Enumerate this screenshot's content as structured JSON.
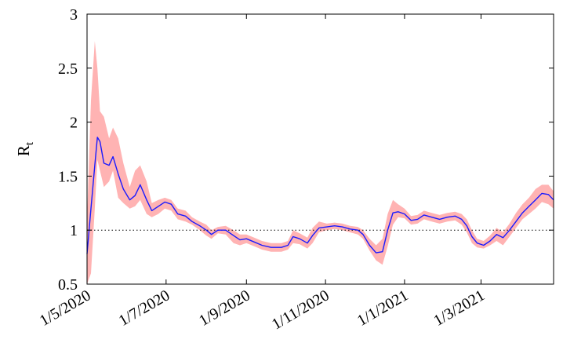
{
  "chart_data": {
    "type": "line",
    "title": "",
    "xlabel": "",
    "ylabel": "R",
    "ylabel_subscript": "t",
    "xlim": [
      "2020-05-01",
      "2021-04-26"
    ],
    "ylim": [
      0.5,
      3
    ],
    "yticks": [
      0.5,
      1,
      1.5,
      2,
      2.5,
      3
    ],
    "ytick_labels": [
      "0.5",
      "1",
      "1.5",
      "2",
      "2.5",
      "3"
    ],
    "xticks": [
      "2020-05-01",
      "2020-07-01",
      "2020-09-01",
      "2020-11-01",
      "2021-01-01",
      "2021-03-01"
    ],
    "xtick_labels": [
      "1/5/2020",
      "1/7/2020",
      "1/9/2020",
      "1/11/2020",
      "1/1/2021",
      "1/3/2021"
    ],
    "reference_line": {
      "y": 1,
      "style": "dotted"
    },
    "grid": false,
    "legend": "none",
    "colors": {
      "line": "#1a1aff",
      "band": "#ffb3b3",
      "axes": "#000000"
    },
    "series": [
      {
        "values": [
          [
            "2020-05-01",
            0.78,
            0.5,
            1.1
          ],
          [
            "2020-05-04",
            1.2,
            0.6,
            2.2
          ],
          [
            "2020-05-07",
            1.6,
            1.2,
            2.75
          ],
          [
            "2020-05-09",
            1.86,
            1.65,
            2.5
          ],
          [
            "2020-05-11",
            1.82,
            1.55,
            2.1
          ],
          [
            "2020-05-14",
            1.62,
            1.4,
            2.05
          ],
          [
            "2020-05-18",
            1.6,
            1.45,
            1.85
          ],
          [
            "2020-05-21",
            1.68,
            1.55,
            1.95
          ],
          [
            "2020-05-25",
            1.52,
            1.3,
            1.85
          ],
          [
            "2020-05-29",
            1.38,
            1.25,
            1.62
          ],
          [
            "2020-06-03",
            1.28,
            1.2,
            1.4
          ],
          [
            "2020-06-07",
            1.32,
            1.22,
            1.55
          ],
          [
            "2020-06-11",
            1.42,
            1.28,
            1.6
          ],
          [
            "2020-06-16",
            1.28,
            1.15,
            1.45
          ],
          [
            "2020-06-20",
            1.18,
            1.12,
            1.25
          ],
          [
            "2020-06-25",
            1.22,
            1.15,
            1.28
          ],
          [
            "2020-06-30",
            1.26,
            1.2,
            1.3
          ],
          [
            "2020-07-05",
            1.24,
            1.18,
            1.28
          ],
          [
            "2020-07-10",
            1.15,
            1.1,
            1.2
          ],
          [
            "2020-07-16",
            1.13,
            1.08,
            1.18
          ],
          [
            "2020-07-21",
            1.08,
            1.05,
            1.12
          ],
          [
            "2020-07-27",
            1.04,
            1.0,
            1.08
          ],
          [
            "2020-08-01",
            1.0,
            0.95,
            1.05
          ],
          [
            "2020-08-05",
            0.96,
            0.92,
            1.0
          ],
          [
            "2020-08-10",
            1.0,
            0.97,
            1.03
          ],
          [
            "2020-08-16",
            1.0,
            0.96,
            1.04
          ],
          [
            "2020-08-22",
            0.95,
            0.88,
            1.0
          ],
          [
            "2020-08-27",
            0.91,
            0.86,
            0.96
          ],
          [
            "2020-09-01",
            0.92,
            0.88,
            0.96
          ],
          [
            "2020-09-07",
            0.89,
            0.85,
            0.93
          ],
          [
            "2020-09-13",
            0.86,
            0.82,
            0.9
          ],
          [
            "2020-09-20",
            0.84,
            0.8,
            0.88
          ],
          [
            "2020-09-28",
            0.84,
            0.8,
            0.88
          ],
          [
            "2020-10-03",
            0.86,
            0.82,
            0.9
          ],
          [
            "2020-10-07",
            0.94,
            0.88,
            1.0
          ],
          [
            "2020-10-12",
            0.92,
            0.87,
            0.97
          ],
          [
            "2020-10-18",
            0.88,
            0.83,
            0.93
          ],
          [
            "2020-10-22",
            0.95,
            0.88,
            1.02
          ],
          [
            "2020-10-27",
            1.02,
            0.98,
            1.08
          ],
          [
            "2020-11-02",
            1.03,
            1.0,
            1.06
          ],
          [
            "2020-11-08",
            1.04,
            1.01,
            1.07
          ],
          [
            "2020-11-14",
            1.03,
            1.0,
            1.06
          ],
          [
            "2020-11-20",
            1.01,
            0.98,
            1.04
          ],
          [
            "2020-11-26",
            1.0,
            0.96,
            1.03
          ],
          [
            "2020-11-30",
            0.96,
            0.92,
            1.0
          ],
          [
            "2020-12-05",
            0.86,
            0.81,
            0.92
          ],
          [
            "2020-12-10",
            0.79,
            0.72,
            0.86
          ],
          [
            "2020-12-15",
            0.8,
            0.68,
            0.92
          ],
          [
            "2020-12-19",
            1.0,
            0.85,
            1.15
          ],
          [
            "2020-12-23",
            1.16,
            1.05,
            1.28
          ],
          [
            "2020-12-27",
            1.17,
            1.12,
            1.24
          ],
          [
            "2021-01-01",
            1.15,
            1.11,
            1.2
          ],
          [
            "2021-01-06",
            1.09,
            1.05,
            1.13
          ],
          [
            "2021-01-11",
            1.1,
            1.06,
            1.14
          ],
          [
            "2021-01-16",
            1.14,
            1.1,
            1.18
          ],
          [
            "2021-01-22",
            1.12,
            1.08,
            1.16
          ],
          [
            "2021-01-28",
            1.1,
            1.06,
            1.14
          ],
          [
            "2021-02-03",
            1.12,
            1.08,
            1.16
          ],
          [
            "2021-02-09",
            1.13,
            1.09,
            1.17
          ],
          [
            "2021-02-14",
            1.1,
            1.05,
            1.15
          ],
          [
            "2021-02-18",
            1.04,
            0.98,
            1.1
          ],
          [
            "2021-02-22",
            0.94,
            0.88,
            1.0
          ],
          [
            "2021-02-26",
            0.88,
            0.84,
            0.92
          ],
          [
            "2021-03-03",
            0.86,
            0.83,
            0.9
          ],
          [
            "2021-03-08",
            0.9,
            0.86,
            0.95
          ],
          [
            "2021-03-13",
            0.96,
            0.9,
            1.02
          ],
          [
            "2021-03-18",
            0.93,
            0.86,
            0.98
          ],
          [
            "2021-03-23",
            1.0,
            0.94,
            1.06
          ],
          [
            "2021-03-28",
            1.08,
            1.02,
            1.16
          ],
          [
            "2021-04-02",
            1.16,
            1.1,
            1.24
          ],
          [
            "2021-04-07",
            1.22,
            1.15,
            1.3
          ],
          [
            "2021-04-12",
            1.28,
            1.2,
            1.38
          ],
          [
            "2021-04-17",
            1.34,
            1.26,
            1.42
          ],
          [
            "2021-04-22",
            1.33,
            1.24,
            1.42
          ],
          [
            "2021-04-26",
            1.28,
            1.2,
            1.36
          ]
        ]
      }
    ]
  }
}
